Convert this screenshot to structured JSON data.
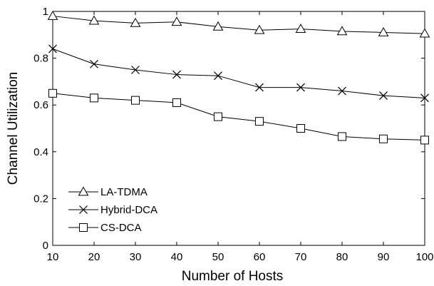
{
  "chart_data": {
    "type": "line",
    "xlabel": "Number of Hosts",
    "ylabel": "Channel Utilization",
    "xlim": [
      10,
      100
    ],
    "ylim": [
      0,
      1
    ],
    "x_ticks": [
      "10",
      "20",
      "30",
      "40",
      "50",
      "60",
      "70",
      "80",
      "90",
      "100"
    ],
    "y_ticks": [
      "0",
      "0.2",
      "0.4",
      "0.6",
      "0.8",
      "1"
    ],
    "x": [
      10,
      20,
      30,
      40,
      50,
      60,
      70,
      80,
      90,
      100
    ],
    "grid": false,
    "legend_position": "bottom-left",
    "series": [
      {
        "name": "LA-TDMA",
        "marker": "triangle",
        "values": [
          0.98,
          0.96,
          0.95,
          0.955,
          0.935,
          0.92,
          0.925,
          0.915,
          0.91,
          0.905
        ]
      },
      {
        "name": "Hybrid-DCA",
        "marker": "x",
        "values": [
          0.84,
          0.775,
          0.75,
          0.73,
          0.725,
          0.675,
          0.675,
          0.66,
          0.64,
          0.63
        ]
      },
      {
        "name": "CS-DCA",
        "marker": "square",
        "values": [
          0.65,
          0.63,
          0.62,
          0.61,
          0.55,
          0.53,
          0.5,
          0.465,
          0.455,
          0.45
        ]
      }
    ]
  }
}
